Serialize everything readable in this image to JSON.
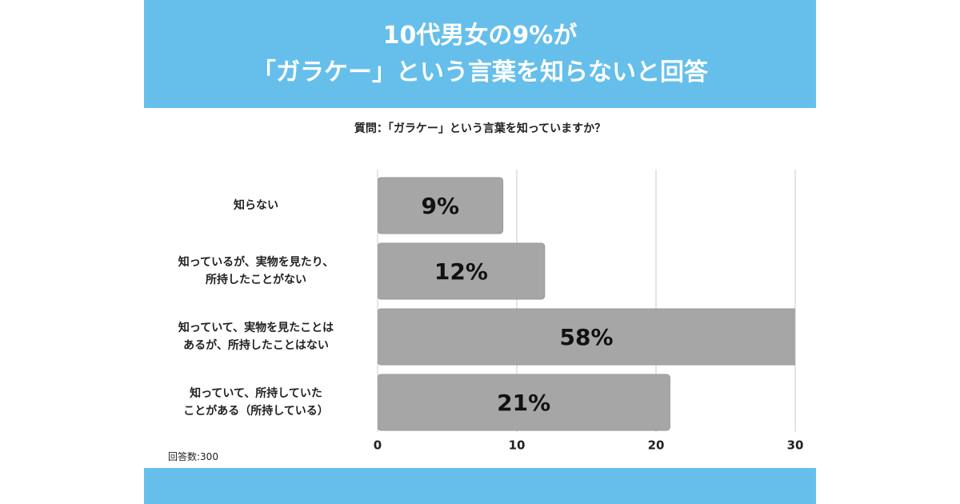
{
  "chart_data": {
    "type": "barh",
    "title": "10代男女の9%が\n「ガラケー」という言葉を知らないと回答",
    "subtitle": "質問：「ガラケー」という言葉を知っていますか？",
    "categories": [
      "知らない",
      "知っているが、実物を見たり、\n所持したことがない",
      "知っていて、実物を見たことは\nあるが、所持したことはない",
      "知っていて、所持していた\nことがある（所持している）"
    ],
    "values": [
      9,
      12,
      58,
      21
    ],
    "value_labels": [
      "9%",
      "12%",
      "58%",
      "21%"
    ],
    "color": "#a6a6a6",
    "xlim": [
      0,
      30
    ],
    "xticks": [
      0,
      10,
      20,
      30
    ],
    "grid": true,
    "note": "回答数:300"
  }
}
